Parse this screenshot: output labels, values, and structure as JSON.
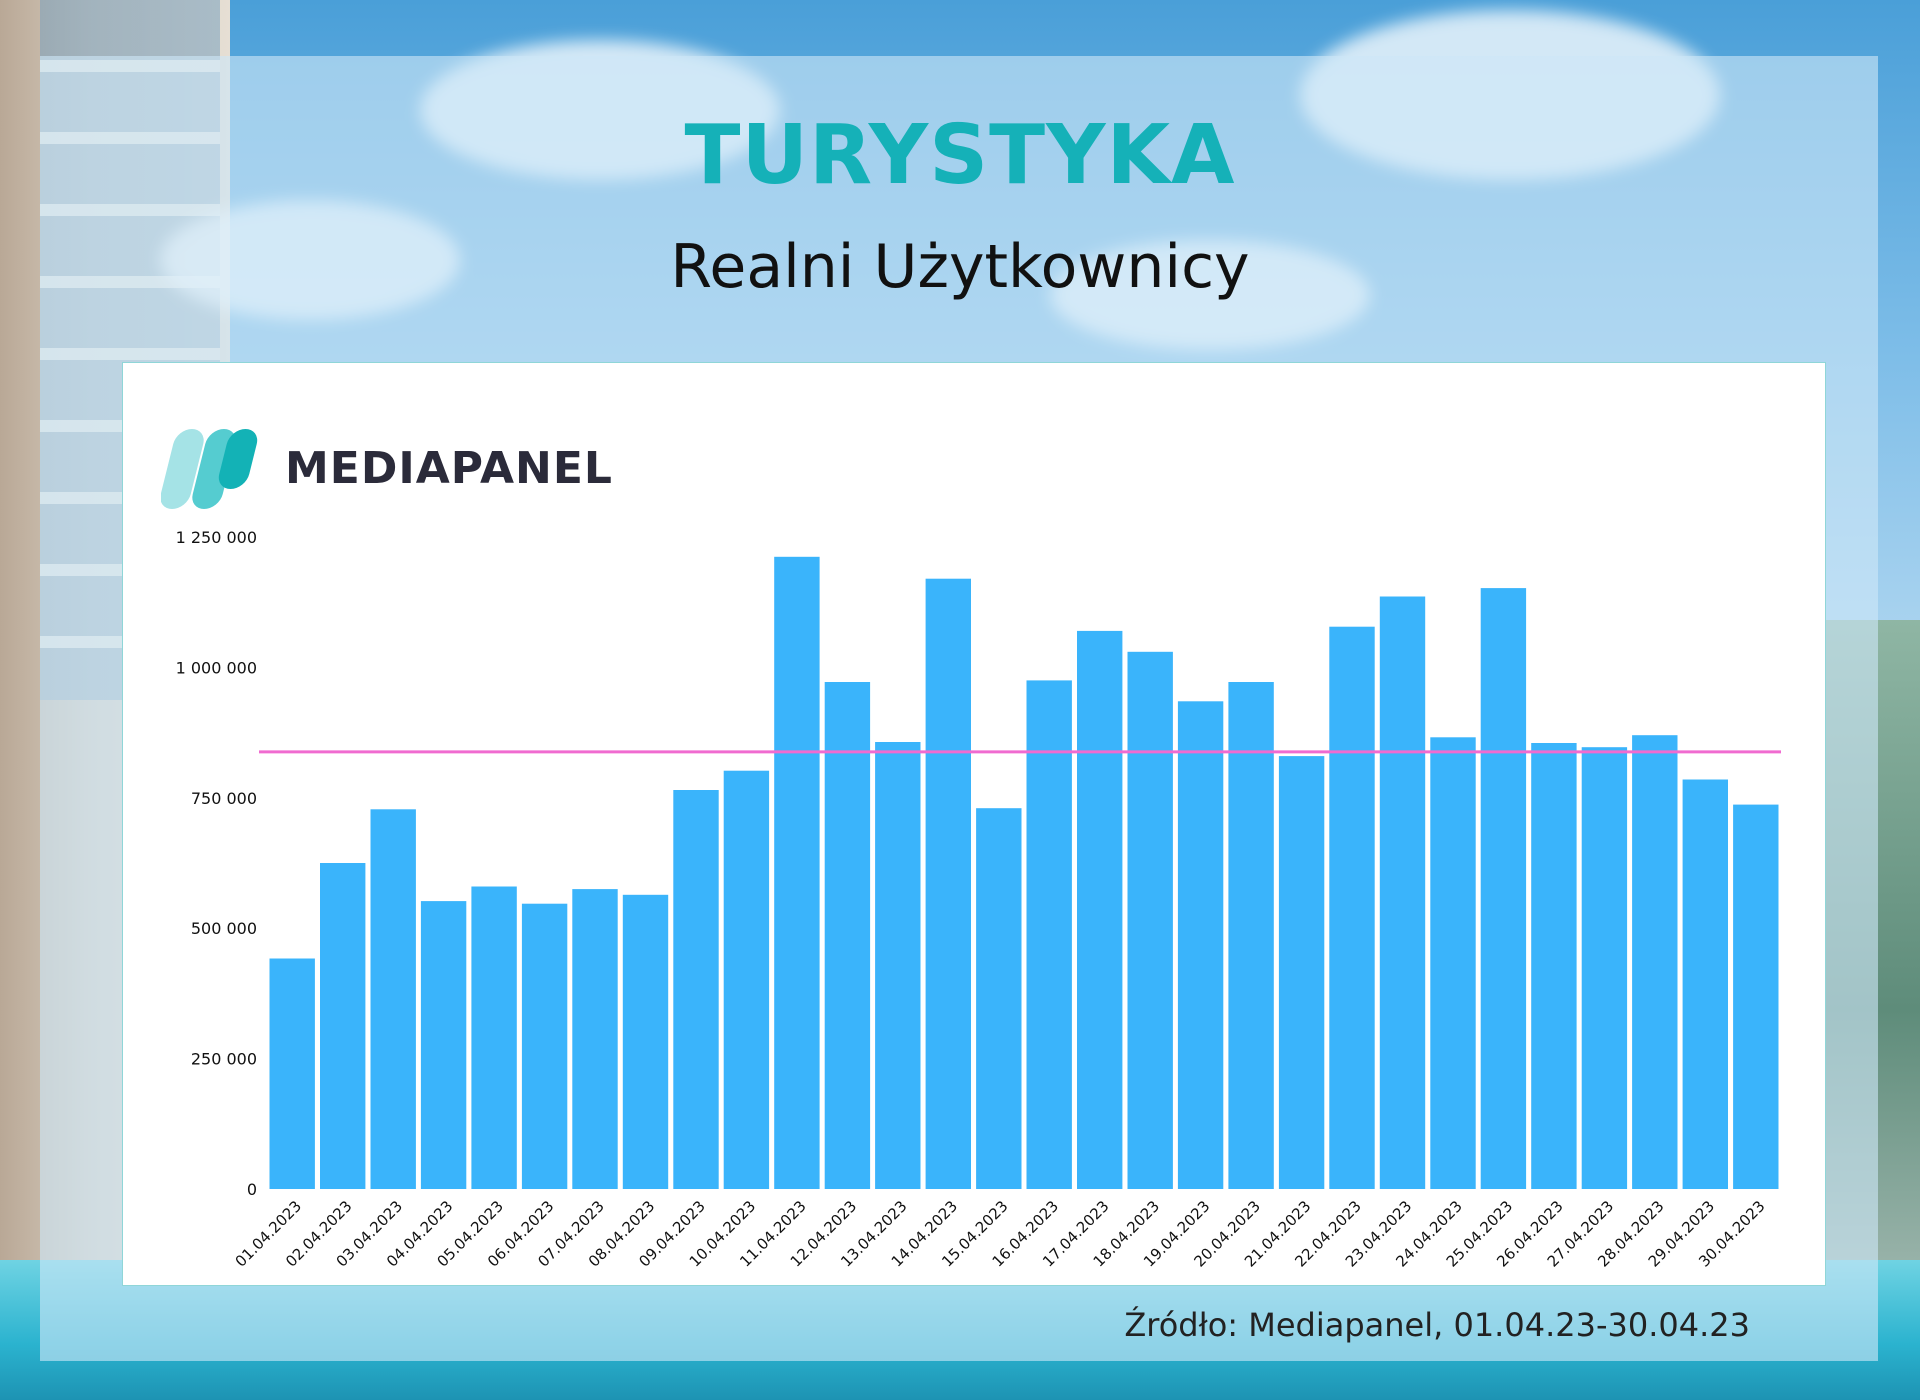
{
  "header": {
    "title": "TURYSTYKA",
    "subtitle": "Realni Użytkownicy"
  },
  "brand": {
    "name": "MEDIAPANEL",
    "logo_icon": "mediapanel-logo-icon",
    "colors": {
      "light": "#9fe0e3",
      "dark": "#14b4b8"
    }
  },
  "footer": {
    "source": "Źródło: Mediapanel, 01.04.23-30.04.23"
  },
  "chart_data": {
    "type": "bar",
    "title": "",
    "xlabel": "",
    "ylabel": "",
    "ylim": [
      0,
      1250000
    ],
    "yticks": [
      {
        "value": 0,
        "label": "0"
      },
      {
        "value": 250000,
        "label": "250 000"
      },
      {
        "value": 500000,
        "label": "500 000"
      },
      {
        "value": 750000,
        "label": "750 000"
      },
      {
        "value": 1000000,
        "label": "1 000 000"
      },
      {
        "value": 1250000,
        "label": "1 250 000"
      }
    ],
    "grid": false,
    "bar_color": "#3ab4fb",
    "reference_line": {
      "value": 838000,
      "color": "#f06bd0"
    },
    "categories": [
      "01.04.2023",
      "02.04.2023",
      "03.04.2023",
      "04.04.2023",
      "05.04.2023",
      "06.04.2023",
      "07.04.2023",
      "08.04.2023",
      "09.04.2023",
      "10.04.2023",
      "11.04.2023",
      "12.04.2023",
      "13.04.2023",
      "14.04.2023",
      "15.04.2023",
      "16.04.2023",
      "17.04.2023",
      "18.04.2023",
      "19.04.2023",
      "20.04.2023",
      "21.04.2023",
      "22.04.2023",
      "23.04.2023",
      "24.04.2023",
      "25.04.2023",
      "26.04.2023",
      "27.04.2023",
      "28.04.2023",
      "29.04.2023",
      "30.04.2023"
    ],
    "values": [
      442000,
      625000,
      728000,
      552000,
      580000,
      547000,
      575000,
      564000,
      765000,
      802000,
      1212000,
      972000,
      857000,
      1170000,
      730000,
      975000,
      1070000,
      1030000,
      935000,
      972000,
      830000,
      1078000,
      1136000,
      866000,
      1152000,
      855000,
      847000,
      870000,
      785000,
      737000
    ]
  }
}
